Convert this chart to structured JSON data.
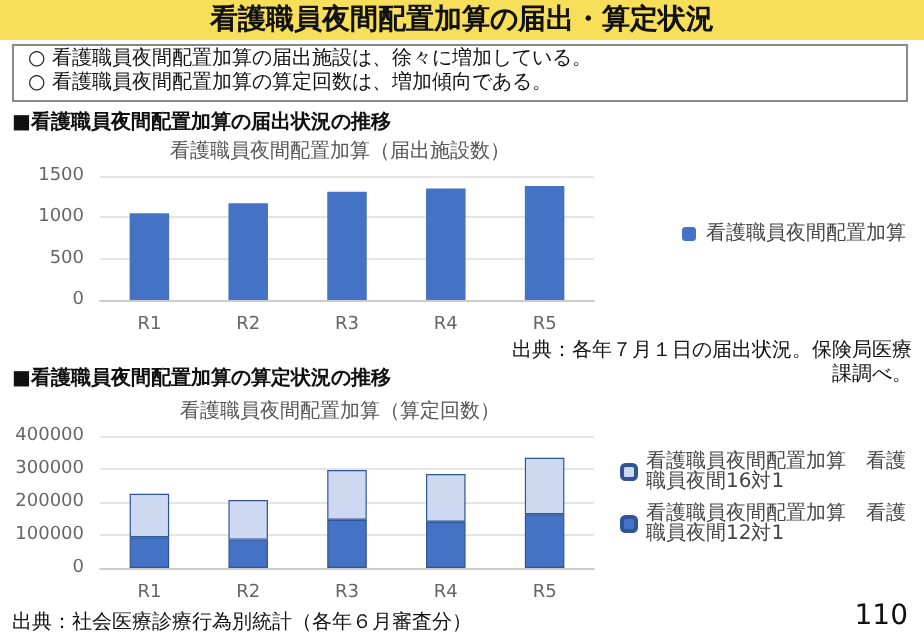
{
  "chart_data": [
    {
      "type": "bar",
      "title": "看護職員夜間配置加算（届出施設数）",
      "categories": [
        "R1",
        "R2",
        "R3",
        "R4",
        "R5"
      ],
      "series": [
        {
          "name": "看護職員夜間配置加算",
          "color": "#4472c4",
          "values": [
            1050,
            1170,
            1310,
            1350,
            1380
          ]
        }
      ],
      "ylim": [
        0,
        1500
      ],
      "yticks": [
        0,
        500,
        1000,
        1500
      ],
      "grid": "y",
      "legend": "right",
      "annotations": [
        "看護職員夜間配置加算の届出・算定状況",
        "○ 看護職員夜間配置加算の届出施設は、徐々に増加している。",
        "○ 看護職員夜間配置加算の算定回数は、増加傾向である。",
        "■看護職員夜間配置加算の届出状況の推移",
        "出典：各年７月１日の届出状況。保険局医療課調べ。"
      ]
    },
    {
      "type": "bar",
      "title": "看護職員夜間配置加算（算定回数）",
      "categories": [
        "R1",
        "R2",
        "R3",
        "R4",
        "R5"
      ],
      "stacked": true,
      "series": [
        {
          "name": "看護職員夜間配置加算　看護職員夜間12対1",
          "color": "#4472c4",
          "values": [
            93000,
            86000,
            146000,
            140000,
            163000
          ]
        },
        {
          "name": "看護職員夜間配置加算　看護職員夜間16対1",
          "color": "#cdd9f0",
          "values": [
            132000,
            120000,
            151000,
            145000,
            171000
          ]
        }
      ],
      "ylim": [
        0,
        400000
      ],
      "yticks": [
        0,
        100000,
        200000,
        300000,
        400000
      ],
      "grid": "y",
      "legend": "right",
      "annotations": [
        "■看護職員夜間配置加算の算定状況の推移",
        "出典：社会医療診療行為別統計（各年６月審査分）",
        "110"
      ]
    }
  ]
}
